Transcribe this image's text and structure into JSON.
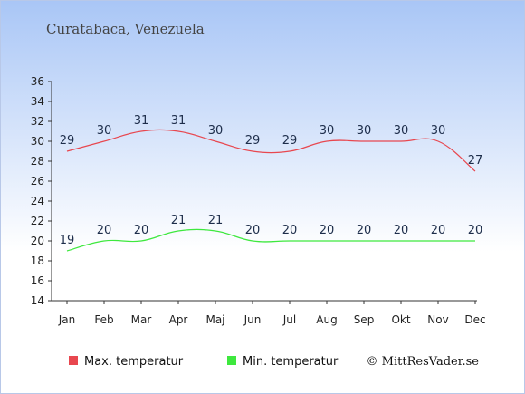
{
  "chart_data": {
    "type": "line",
    "title": "Curatabaca, Venezuela",
    "categories": [
      "Jan",
      "Feb",
      "Mar",
      "Apr",
      "Maj",
      "Jun",
      "Jul",
      "Aug",
      "Sep",
      "Okt",
      "Nov",
      "Dec"
    ],
    "series": [
      {
        "name": "Max. temperatur",
        "color": "#e8474f",
        "values": [
          29,
          30,
          31,
          31,
          30,
          29,
          29,
          30,
          30,
          30,
          30,
          27
        ]
      },
      {
        "name": "Min. temperatur",
        "color": "#3ee83e",
        "values": [
          19,
          20,
          20,
          21,
          21,
          20,
          20,
          20,
          20,
          20,
          20,
          20
        ]
      }
    ],
    "y_ticks": [
      "14",
      "16",
      "18",
      "20",
      "22",
      "24",
      "26",
      "28",
      "30",
      "32",
      "34",
      "36"
    ],
    "ylim": [
      14,
      36
    ],
    "grid": false,
    "legend_position": "bottom-left",
    "credit": "© MittResVader.se"
  }
}
